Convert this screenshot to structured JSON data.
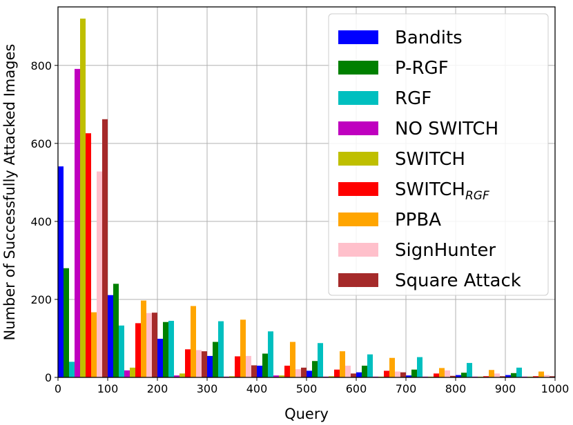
{
  "chart_data": {
    "type": "bar",
    "xlabel": "Query",
    "ylabel": "Number of Successfully Attacked Images",
    "xlim": [
      0,
      1000
    ],
    "ylim": [
      0,
      950
    ],
    "grid": true,
    "legend_position": "top-right",
    "xticks": [
      "0",
      "100",
      "200",
      "300",
      "400",
      "500",
      "600",
      "700",
      "800",
      "900",
      "1000"
    ],
    "yticks": [
      "0",
      "200",
      "400",
      "600",
      "800"
    ],
    "x": [
      0,
      100,
      200,
      300,
      400,
      500,
      600,
      700,
      800,
      900
    ],
    "bin_width": 100,
    "series": [
      {
        "name": "Bandits",
        "color": "#0000ff",
        "values": [
          541,
          211,
          99,
          55,
          30,
          17,
          13,
          5,
          6,
          6
        ]
      },
      {
        "name": "P-RGF",
        "color": "#008000",
        "values": [
          280,
          240,
          142,
          91,
          61,
          42,
          30,
          20,
          12,
          11
        ]
      },
      {
        "name": "RGF",
        "color": "#00bfbf",
        "values": [
          40,
          133,
          145,
          144,
          118,
          88,
          59,
          52,
          37,
          25
        ]
      },
      {
        "name": "NO SWITCH",
        "color": "#bf00bf",
        "values": [
          791,
          18,
          5,
          2,
          5,
          2,
          2,
          2,
          2,
          2
        ]
      },
      {
        "name": "SWITCH",
        "color": "#bfbf00",
        "values": [
          920,
          25,
          10,
          3,
          5,
          3,
          2,
          2,
          2,
          2
        ]
      },
      {
        "name": "SWITCH",
        "name_subscript": "RGF",
        "color": "#ff0000",
        "values": [
          626,
          139,
          72,
          54,
          30,
          20,
          17,
          10,
          3,
          3
        ]
      },
      {
        "name": "PPBA",
        "color": "#ffa500",
        "values": [
          167,
          197,
          183,
          148,
          91,
          67,
          50,
          24,
          19,
          15
        ]
      },
      {
        "name": "SignHunter",
        "color": "#ffc0cb",
        "values": [
          528,
          165,
          70,
          55,
          21,
          30,
          15,
          18,
          10,
          6
        ]
      },
      {
        "name": "Square Attack",
        "color": "#a52a2a",
        "values": [
          662,
          166,
          67,
          31,
          25,
          10,
          13,
          4,
          3,
          3
        ]
      }
    ]
  }
}
